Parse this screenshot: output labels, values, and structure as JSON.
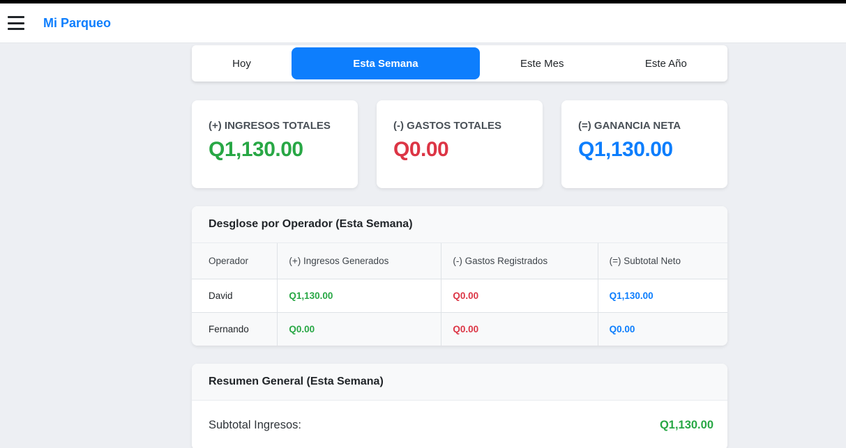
{
  "header": {
    "title": "Mi Parqueo"
  },
  "tabs": [
    {
      "label": "Hoy",
      "active": false
    },
    {
      "label": "Esta Semana",
      "active": true
    },
    {
      "label": "Este Mes",
      "active": false
    },
    {
      "label": "Este Año",
      "active": false
    }
  ],
  "summary_cards": [
    {
      "label": "(+) INGRESOS TOTALES",
      "value": "Q1,130.00",
      "color": "#28a745"
    },
    {
      "label": "(-) GASTOS TOTALES",
      "value": "Q0.00",
      "color": "#dc3545"
    },
    {
      "label": "(=) GANANCIA NETA",
      "value": "Q1,130.00",
      "color": "#0d7efd"
    }
  ],
  "operator_table": {
    "title": "Desglose por Operador (Esta Semana)",
    "columns": [
      "Operador",
      "(+) Ingresos Generados",
      "(-) Gastos Registrados",
      "(=) Subtotal Neto"
    ],
    "rows": [
      {
        "operador": "David",
        "ingresos": "Q1,130.00",
        "gastos": "Q0.00",
        "subtotal": "Q1,130.00"
      },
      {
        "operador": "Fernando",
        "ingresos": "Q0.00",
        "gastos": "Q0.00",
        "subtotal": "Q0.00"
      }
    ]
  },
  "resumen": {
    "title": "Resumen General (Esta Semana)",
    "rows": [
      {
        "label": "Subtotal Ingresos:",
        "value": "Q1,130.00",
        "color": "#28a745"
      }
    ]
  },
  "colors": {
    "accent_blue": "#0d7efd",
    "positive_green": "#28a745",
    "negative_red": "#dc3545",
    "topbar_black": "#000000",
    "page_background": "#edeff3",
    "panel_header_bg": "#f8f9fa"
  },
  "icons": {
    "hamburger": "menu-icon"
  }
}
